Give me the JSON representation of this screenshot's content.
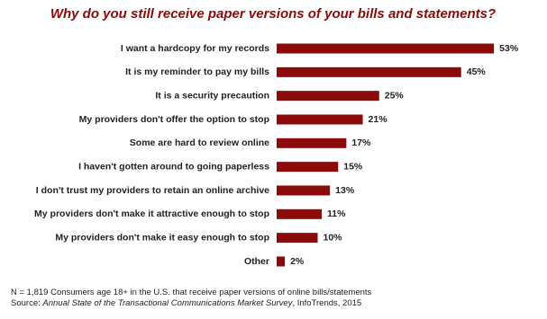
{
  "chart_data": {
    "type": "bar",
    "orientation": "horizontal",
    "title": "Why do you still receive paper versions of your bills and statements?",
    "categories": [
      "I want a hardcopy for my records",
      "It is my reminder to pay my bills",
      "It is a security precaution",
      "My providers don't offer the option to stop",
      "Some are hard to review online",
      "I haven't gotten around to going paperless",
      "I don't trust my providers to retain an online archive",
      "My providers don't make it attractive enough to stop",
      "My providers don't make it easy enough to stop",
      "Other"
    ],
    "values": [
      53,
      45,
      25,
      21,
      17,
      15,
      13,
      11,
      10,
      2
    ],
    "value_labels": [
      "53%",
      "45%",
      "25%",
      "21%",
      "17%",
      "15%",
      "13%",
      "11%",
      "10%",
      "2%"
    ],
    "color": "#8b0a0a"
  },
  "footnote": {
    "note": "N = 1,819 Consumers age 18+ in the U.S. that receive paper versions of online bills/statements",
    "source_prefix": "Source:",
    "source_title": "Annual State of the Transactional Communications Market Survey",
    "source_suffix": ", InfoTrends, 2015"
  }
}
